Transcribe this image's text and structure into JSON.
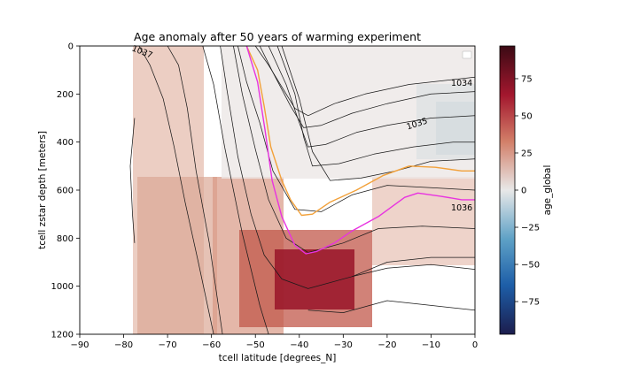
{
  "chart_data": {
    "type": "heatmap",
    "title": "Age anomaly after 50 years of warming experiment",
    "xlabel": "tcell latitude [degrees_N]",
    "ylabel": "tcell zstar depth [meters]",
    "xlim": [
      -90,
      0
    ],
    "ylim": [
      1200,
      0
    ],
    "x_ticks": [
      -90,
      -80,
      -70,
      -60,
      -50,
      -40,
      -30,
      -20,
      -10,
      0
    ],
    "x_tick_labels": [
      "−90",
      "−80",
      "−70",
      "−60",
      "−50",
      "−40",
      "−30",
      "−20",
      "−10",
      "0"
    ],
    "y_ticks": [
      0,
      200,
      400,
      600,
      800,
      1000,
      1200
    ],
    "y_tick_labels": [
      "0",
      "200",
      "400",
      "600",
      "800",
      "1000",
      "1200"
    ],
    "colorbar": {
      "label": "age_global",
      "range": [
        -97,
        97
      ],
      "ticks": [
        75,
        50,
        25,
        0,
        -25,
        -50,
        -75
      ],
      "tick_labels": [
        "75",
        "50",
        "25",
        "0",
        "−25",
        "−50",
        "−75"
      ],
      "colormap": [
        "#1c1d4d",
        "#1d5ea8",
        "#5ea1c6",
        "#e8e8e8",
        "#d27e68",
        "#a3172e",
        "#3b0a14"
      ]
    },
    "contour_labels": [
      {
        "text": "1037",
        "lat": -76,
        "depth": 20
      },
      {
        "text": "1034",
        "lat": -3,
        "depth": 150
      },
      {
        "text": "1035",
        "lat": -13,
        "depth": 320
      },
      {
        "text": "1036",
        "lat": -3,
        "depth": 670
      }
    ],
    "highlight_contours": [
      {
        "color": "#f2a13a",
        "points": [
          [
            -52,
            0
          ],
          [
            -49.5,
            100
          ],
          [
            -48,
            250
          ],
          [
            -46.5,
            420
          ],
          [
            -44,
            560
          ],
          [
            -42,
            640
          ],
          [
            -39.5,
            705
          ],
          [
            -37,
            700
          ],
          [
            -33,
            650
          ],
          [
            -27,
            600
          ],
          [
            -21,
            540
          ],
          [
            -15,
            500
          ],
          [
            -9,
            505
          ],
          [
            -3,
            520
          ],
          [
            0,
            520
          ]
        ]
      },
      {
        "color": "#e833e0",
        "points": [
          [
            -52,
            0
          ],
          [
            -49.5,
            150
          ],
          [
            -47.8,
            350
          ],
          [
            -46.2,
            560
          ],
          [
            -44,
            710
          ],
          [
            -41,
            830
          ],
          [
            -38.5,
            865
          ],
          [
            -36,
            855
          ],
          [
            -32,
            820
          ],
          [
            -28,
            770
          ],
          [
            -22,
            710
          ],
          [
            -16,
            630
          ],
          [
            -13,
            612
          ],
          [
            -8,
            625
          ],
          [
            -3,
            640
          ],
          [
            0,
            640
          ]
        ]
      }
    ],
    "black_contours": [
      [
        [
          -76.5,
          0
        ],
        [
          -74,
          80
        ],
        [
          -71,
          220
        ],
        [
          -68.5,
          420
        ],
        [
          -66,
          650
        ],
        [
          -63,
          900
        ],
        [
          -59.5,
          1200
        ]
      ],
      [
        [
          -70,
          0
        ],
        [
          -67.5,
          80
        ],
        [
          -65.5,
          260
        ],
        [
          -63.5,
          520
        ],
        [
          -60.5,
          820
        ],
        [
          -57.5,
          1200
        ]
      ],
      [
        [
          -62,
          0
        ],
        [
          -59.5,
          160
        ],
        [
          -57,
          420
        ],
        [
          -53,
          780
        ],
        [
          -49,
          1080
        ],
        [
          -47,
          1200
        ]
      ],
      [
        [
          -58,
          0
        ],
        [
          -56.5,
          180
        ],
        [
          -54,
          460
        ],
        [
          -51,
          700
        ],
        [
          -48,
          870
        ],
        [
          -44,
          970
        ],
        [
          -38,
          1010
        ],
        [
          -28,
          960
        ],
        [
          -20,
          900
        ],
        [
          -10,
          880
        ],
        [
          0,
          880
        ]
      ],
      [
        [
          -55,
          0
        ],
        [
          -53,
          200
        ],
        [
          -50,
          430
        ],
        [
          -47,
          640
        ],
        [
          -43,
          800
        ],
        [
          -38,
          860
        ],
        [
          -30,
          820
        ],
        [
          -22,
          760
        ],
        [
          -12,
          750
        ],
        [
          0,
          760
        ]
      ],
      [
        [
          -54,
          0
        ],
        [
          -52,
          150
        ],
        [
          -49,
          320
        ],
        [
          -46,
          520
        ],
        [
          -41,
          680
        ],
        [
          -35,
          690
        ],
        [
          -28,
          620
        ],
        [
          -20,
          580
        ],
        [
          -10,
          590
        ],
        [
          0,
          600
        ]
      ],
      [
        [
          -50,
          0
        ],
        [
          -47,
          80
        ],
        [
          -44,
          170
        ],
        [
          -41,
          260
        ],
        [
          -38,
          290
        ],
        [
          -32,
          240
        ],
        [
          -25,
          200
        ],
        [
          -15,
          160
        ],
        [
          -5,
          140
        ],
        [
          0,
          130
        ]
      ],
      [
        [
          -49,
          0
        ],
        [
          -46,
          110
        ],
        [
          -42,
          250
        ],
        [
          -39,
          340
        ],
        [
          -35,
          330
        ],
        [
          -28,
          280
        ],
        [
          -20,
          240
        ],
        [
          -10,
          200
        ],
        [
          0,
          190
        ]
      ],
      [
        [
          -47,
          0
        ],
        [
          -43,
          160
        ],
        [
          -40,
          320
        ],
        [
          -38,
          420
        ],
        [
          -34,
          410
        ],
        [
          -27,
          360
        ],
        [
          -20,
          330
        ],
        [
          -10,
          300
        ],
        [
          0,
          290
        ]
      ],
      [
        [
          -45,
          0
        ],
        [
          -41,
          200
        ],
        [
          -39,
          380
        ],
        [
          -37,
          500
        ],
        [
          -31,
          490
        ],
        [
          -23,
          450
        ],
        [
          -14,
          420
        ],
        [
          -5,
          400
        ],
        [
          0,
          400
        ]
      ],
      [
        [
          -44,
          0
        ],
        [
          -40,
          220
        ],
        [
          -37,
          440
        ],
        [
          -33,
          560
        ],
        [
          -26,
          550
        ],
        [
          -18,
          520
        ],
        [
          -10,
          480
        ],
        [
          0,
          470
        ]
      ],
      [
        [
          -38,
          1100
        ],
        [
          -30,
          1110
        ],
        [
          -20,
          1060
        ],
        [
          -10,
          1080
        ],
        [
          0,
          1100
        ]
      ],
      [
        [
          -28,
          960
        ],
        [
          -20,
          925
        ],
        [
          -10,
          910
        ],
        [
          0,
          930
        ]
      ],
      [
        [
          -77.5,
          300
        ],
        [
          -78.5,
          500
        ],
        [
          -78,
          700
        ],
        [
          -77.5,
          820
        ]
      ]
    ]
  }
}
